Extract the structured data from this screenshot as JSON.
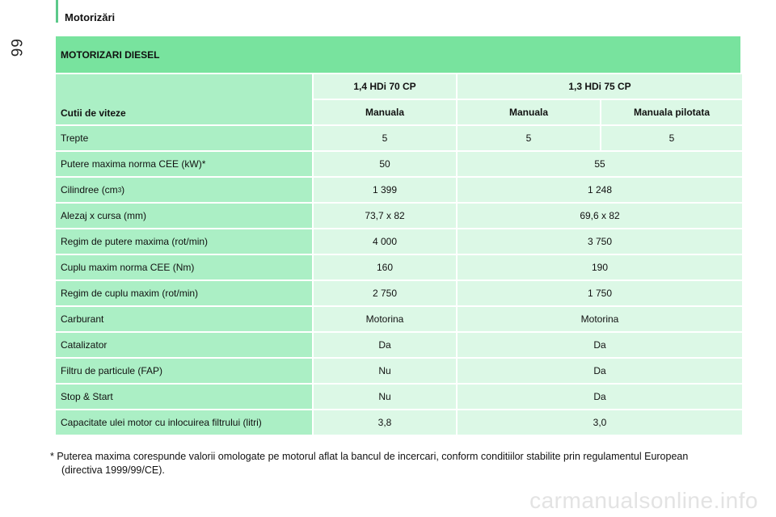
{
  "header": {
    "section": "Motorizări",
    "page_number": "66"
  },
  "table": {
    "title": "MOTORIZARI DIESEL",
    "gearbox_label": "Cutii de viteze",
    "engines": [
      "1,4 HDi 70 CP",
      "1,3 HDi 75 CP"
    ],
    "gearboxes": [
      "Manuala",
      "Manuala",
      "Manuala pilotata"
    ],
    "rows": {
      "trepte": {
        "label": "Trepte",
        "v1": "5",
        "v2": "5",
        "v3": "5"
      },
      "putere": {
        "label": "Putere maxima norma CEE (kW)*",
        "v1": "50",
        "v2": "55"
      },
      "cilindree": {
        "label": "Cilindree (cm",
        "sup": "3",
        "label_end": ")",
        "v1": "1 399",
        "v2": "1 248"
      },
      "alezaj": {
        "label": "Alezaj x cursa (mm)",
        "v1": "73,7 x 82",
        "v2": "69,6 x 82"
      },
      "regim_putere": {
        "label": "Regim de putere maxima (rot/min)",
        "v1": "4 000",
        "v2": "3 750"
      },
      "cuplu": {
        "label": "Cuplu maxim norma CEE (Nm)",
        "v1": "160",
        "v2": "190"
      },
      "regim_cuplu": {
        "label": "Regim de cuplu maxim (rot/min)",
        "v1": "2 750",
        "v2": "1 750"
      },
      "carburant": {
        "label": "Carburant",
        "v1": "Motorina",
        "v2": "Motorina"
      },
      "catalizator": {
        "label": "Catalizator",
        "v1": "Da",
        "v2": "Da"
      },
      "filtru": {
        "label": "Filtru de particule (FAP)",
        "v1": "Nu",
        "v2": "Da"
      },
      "stop_start": {
        "label": "Stop & Start",
        "v1": "Nu",
        "v2": "Da"
      },
      "capacitate": {
        "label": "Capacitate ulei motor cu inlocuirea filtrului (litri)",
        "v1": "3,8",
        "v2": "3,0"
      }
    }
  },
  "footnote": {
    "marker": "*",
    "line1": " Puterea maxima corespunde valorii omologate pe motorul aflat la bancul de incercari, conform conditiilor stabilite prin regulamentul European",
    "line2": "(directiva 1999/99/CE)."
  },
  "watermark": "carmanualsonline.info",
  "colors": {
    "title_bg": "#78e39e",
    "label_bg": "#abefc5",
    "value_bg": "#dcf8e6",
    "accent_bar": "#5cc98a"
  }
}
